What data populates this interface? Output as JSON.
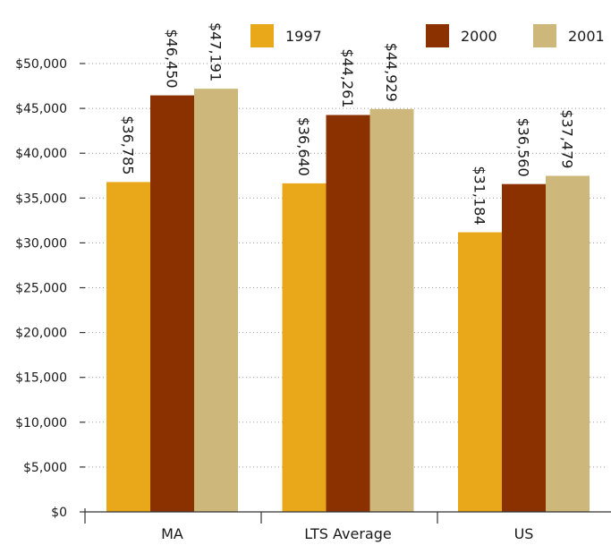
{
  "chart_data": {
    "type": "bar",
    "categories": [
      "MA",
      "LTS Average",
      "US"
    ],
    "series": [
      {
        "name": "1997",
        "values": [
          36785,
          36640,
          31184
        ],
        "labels": [
          "$36,785",
          "$36,640",
          "$31,184"
        ]
      },
      {
        "name": "2000",
        "values": [
          46450,
          44261,
          36560
        ],
        "labels": [
          "$46,450",
          "$44,261",
          "$36,560"
        ]
      },
      {
        "name": "2001",
        "values": [
          47191,
          44929,
          37479
        ],
        "labels": [
          "$47,191",
          "$44,929",
          "$37,479"
        ]
      }
    ],
    "colors": [
      "#e8a81a",
      "#8b3100",
      "#cdb77a"
    ],
    "ylim": [
      0,
      50000
    ],
    "yticks": [
      0,
      5000,
      10000,
      15000,
      20000,
      25000,
      30000,
      35000,
      40000,
      45000,
      50000
    ],
    "ytick_labels": [
      "$0",
      "$5,000",
      "$10,000",
      "$15,000",
      "$20,000",
      "$25,000",
      "$30,000",
      "$35,000",
      "$40,000",
      "$45,000",
      "$50,000"
    ],
    "grid": true,
    "legend": "top-right"
  }
}
